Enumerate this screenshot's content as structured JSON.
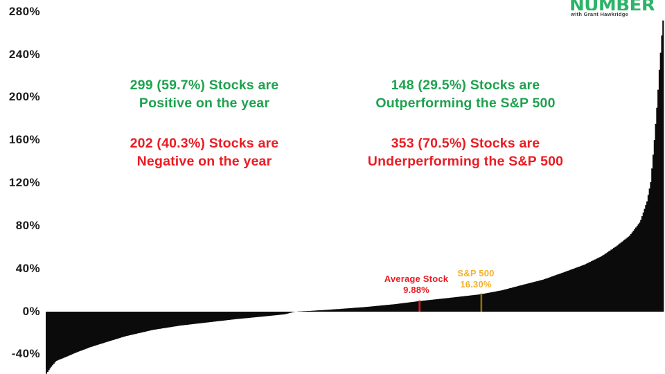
{
  "logo": {
    "brand": "NUMBER",
    "tagline": "with Grant Hawkridge",
    "brand_color": "#2db36a",
    "tagline_color": "#3a3a3a"
  },
  "annotations": {
    "positive": {
      "line1": "299 (59.7%) Stocks are",
      "line2": "Positive on the year",
      "color": "#1fa24f"
    },
    "negative": {
      "line1": "202 (40.3%) Stocks are",
      "line2": "Negative on the year",
      "color": "#ea1c23"
    },
    "outperform": {
      "line1": "148 (29.5%) Stocks are",
      "line2": "Outperforming the S&P 500",
      "color": "#1fa24f"
    },
    "underperform": {
      "line1": "353 (70.5%) Stocks are",
      "line2": "Underperforming the S&P 500",
      "color": "#ea1c23"
    },
    "average_stock": {
      "label": "Average Stock",
      "value": "9.88%",
      "color": "#ea1c23"
    },
    "sp500": {
      "label": "S&P 500",
      "value": "16.30%",
      "color": "#f2b127"
    }
  },
  "chart_data": {
    "type": "bar",
    "title": "",
    "description": "Year-to-date return of each S&P 500 stock, sorted ascending; black bar profile from about -58% to +272%",
    "n_stocks": 501,
    "bar_color": "#0b0b0b",
    "grid": false,
    "legend": "none",
    "xlabel": "",
    "ylabel": "",
    "ylim": [
      -60,
      290
    ],
    "yticks": [
      280,
      240,
      200,
      160,
      120,
      80,
      40,
      0,
      -40
    ],
    "ytick_suffix": "%",
    "stats": {
      "positive_count": 299,
      "positive_pct": 59.7,
      "negative_count": 202,
      "negative_pct": 40.3,
      "outperforming_count": 148,
      "outperforming_pct": 29.5,
      "underperforming_count": 353,
      "underperforming_pct": 70.5,
      "average_stock_return_pct": 9.88,
      "sp500_return_pct": 16.3
    },
    "markers": [
      {
        "name": "Average Stock",
        "value": 9.88,
        "percentile": 0.605,
        "tick_color": "#dd1a20"
      },
      {
        "name": "S&P 500",
        "value": 16.3,
        "percentile": 0.705,
        "tick_color": "#8a6e14"
      }
    ],
    "profile_points": [
      [
        0.0,
        -58
      ],
      [
        0.007,
        -52
      ],
      [
        0.016,
        -46
      ],
      [
        0.033,
        -42
      ],
      [
        0.049,
        -38
      ],
      [
        0.072,
        -33
      ],
      [
        0.094,
        -29
      ],
      [
        0.128,
        -23
      ],
      [
        0.173,
        -17
      ],
      [
        0.217,
        -13
      ],
      [
        0.262,
        -10
      ],
      [
        0.307,
        -7
      ],
      [
        0.352,
        -4.5
      ],
      [
        0.386,
        -2.5
      ],
      [
        0.403,
        0
      ],
      [
        0.43,
        0.8
      ],
      [
        0.475,
        2.5
      ],
      [
        0.52,
        4.5
      ],
      [
        0.565,
        7
      ],
      [
        0.605,
        9.88
      ],
      [
        0.655,
        13
      ],
      [
        0.705,
        16.3
      ],
      [
        0.739,
        20
      ],
      [
        0.772,
        25
      ],
      [
        0.806,
        30
      ],
      [
        0.84,
        37
      ],
      [
        0.873,
        44
      ],
      [
        0.901,
        52
      ],
      [
        0.924,
        61
      ],
      [
        0.946,
        71
      ],
      [
        0.963,
        84
      ],
      [
        0.974,
        103
      ],
      [
        0.98,
        121
      ],
      [
        0.985,
        153
      ],
      [
        0.989,
        183
      ],
      [
        0.991,
        198
      ],
      [
        0.994,
        226
      ],
      [
        0.998,
        258
      ],
      [
        1.0,
        272
      ]
    ]
  }
}
